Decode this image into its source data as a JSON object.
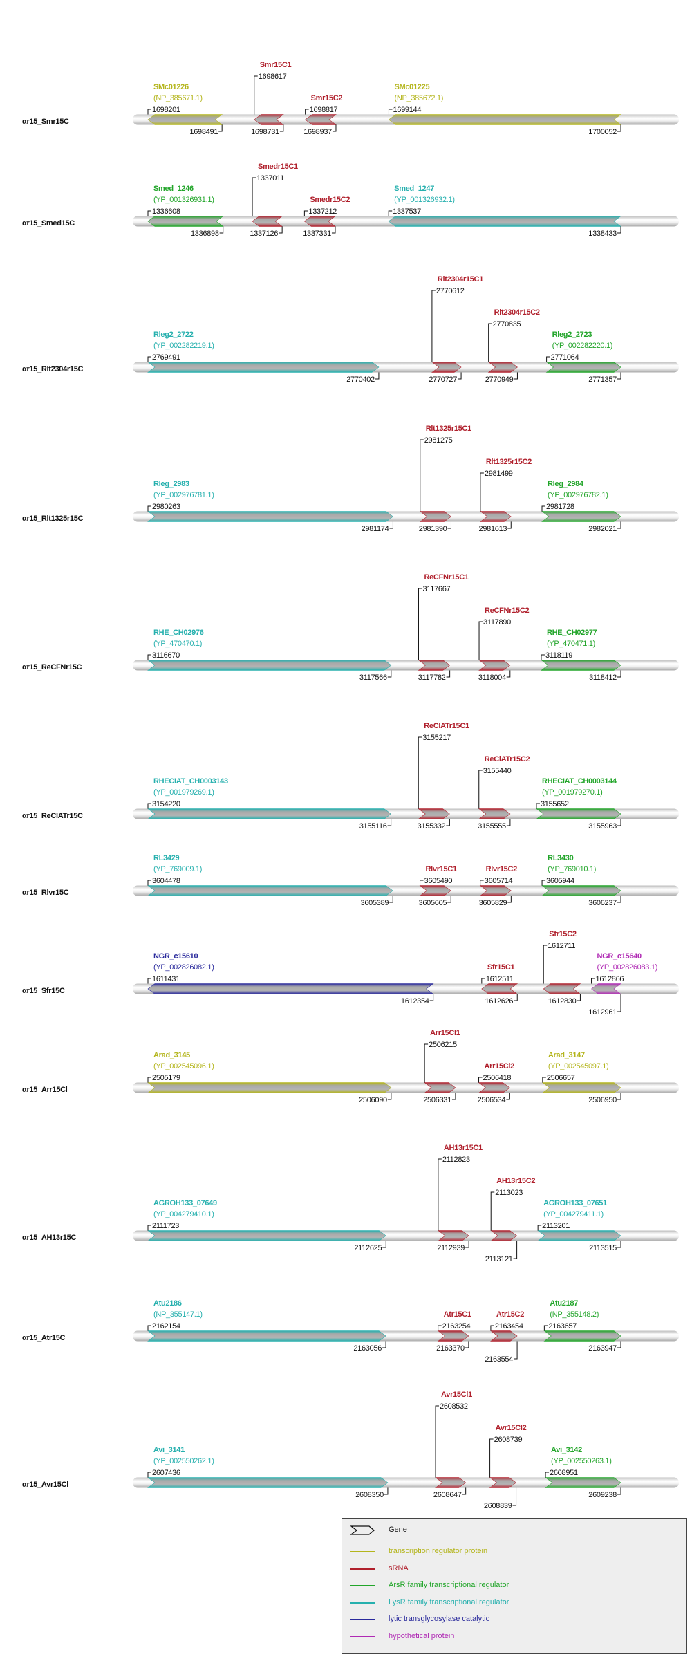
{
  "colors": {
    "transcription_regulator": "#b4b51c",
    "srna": "#b0202c",
    "arsr": "#22a52a",
    "lysr": "#26b0ae",
    "lytic": "#2a2a9c",
    "hypothetical": "#b02ab4",
    "backbone": "#d8d8d8",
    "text": "#111111"
  },
  "tracks": [
    {
      "label": "αr15_Smr15C",
      "features": [
        {
          "name": "SMc01226",
          "accession": "(NP_385671.1)",
          "start": 1698201,
          "end": 1698491,
          "strand": "-",
          "type": "transcription_regulator"
        },
        {
          "name": "Smr15C1",
          "start": 1698617,
          "end": 1698731,
          "strand": "-",
          "type": "srna"
        },
        {
          "name": "Smr15C2",
          "start": 1698817,
          "end": 1698937,
          "strand": "-",
          "type": "srna"
        },
        {
          "name": "SMc01225",
          "accession": "(NP_385672.1)",
          "start": 1699144,
          "end": 1700052,
          "strand": "-",
          "type": "transcription_regulator"
        }
      ]
    },
    {
      "label": "αr15_Smed15C",
      "features": [
        {
          "name": "Smed_1246",
          "accession": "(YP_001326931.1)",
          "start": 1336608,
          "end": 1336898,
          "strand": "-",
          "type": "arsr"
        },
        {
          "name": "Smedr15C1",
          "start": 1337011,
          "end": 1337126,
          "strand": "-",
          "type": "srna"
        },
        {
          "name": "Smedr15C2",
          "start": 1337212,
          "end": 1337331,
          "strand": "-",
          "type": "srna"
        },
        {
          "name": "Smed_1247",
          "accession": "(YP_001326932.1)",
          "start": 1337537,
          "end": 1338433,
          "strand": "-",
          "type": "lysr"
        }
      ]
    },
    {
      "label": "αr15_Rlt2304r15C",
      "features": [
        {
          "name": "Rleg2_2722",
          "accession": "(YP_002282219.1)",
          "start": 2769491,
          "end": 2770402,
          "strand": "+",
          "type": "lysr"
        },
        {
          "name": "Rlt2304r15C1",
          "start": 2770612,
          "end": 2770727,
          "strand": "+",
          "type": "srna"
        },
        {
          "name": "Rlt2304r15C2",
          "start": 2770835,
          "end": 2770949,
          "strand": "+",
          "type": "srna"
        },
        {
          "name": "Rleg2_2723",
          "accession": "(YP_002282220.1)",
          "start": 2771064,
          "end": 2771357,
          "strand": "+",
          "type": "arsr"
        }
      ]
    },
    {
      "label": "αr15_Rlt1325r15C",
      "features": [
        {
          "name": "Rleg_2983",
          "accession": "(YP_002976781.1)",
          "start": 2980263,
          "end": 2981174,
          "strand": "+",
          "type": "lysr"
        },
        {
          "name": "Rlt1325r15C1",
          "start": 2981275,
          "end": 2981390,
          "strand": "+",
          "type": "srna"
        },
        {
          "name": "Rlt1325r15C2",
          "start": 2981499,
          "end": 2981613,
          "strand": "+",
          "type": "srna"
        },
        {
          "name": "Rleg_2984",
          "accession": "(YP_002976782.1)",
          "start": 2981728,
          "end": 2982021,
          "strand": "+",
          "type": "arsr"
        }
      ]
    },
    {
      "label": "αr15_ReCFNr15C",
      "features": [
        {
          "name": "RHE_CH02976",
          "accession": "(YP_470470.1)",
          "start": 3116670,
          "end": 3117566,
          "strand": "+",
          "type": "lysr"
        },
        {
          "name": "ReCFNr15C1",
          "start": 3117667,
          "end": 3117782,
          "strand": "+",
          "type": "srna"
        },
        {
          "name": "ReCFNr15C2",
          "start": 3117890,
          "end": 3118004,
          "strand": "+",
          "type": "srna"
        },
        {
          "name": "RHE_CH02977",
          "accession": "(YP_470471.1)",
          "start": 3118119,
          "end": 3118412,
          "strand": "+",
          "type": "arsr"
        }
      ]
    },
    {
      "label": "αr15_ReClATr15C",
      "features": [
        {
          "name": "RHECIAT_CH0003143",
          "accession": "(YP_001979269.1)",
          "start": 3154220,
          "end": 3155116,
          "strand": "+",
          "type": "lysr"
        },
        {
          "name": "ReClATr15C1",
          "start": 3155217,
          "end": 3155332,
          "strand": "+",
          "type": "srna"
        },
        {
          "name": "ReClATr15C2",
          "start": 3155440,
          "end": 3155555,
          "strand": "+",
          "type": "srna"
        },
        {
          "name": "RHECIAT_CH0003144",
          "accession": "(YP_001979270.1)",
          "start": 3155652,
          "end": 3155963,
          "strand": "+",
          "type": "arsr"
        }
      ]
    },
    {
      "label": "αr15_Rlvr15C",
      "features": [
        {
          "name": "RL3429",
          "accession": "(YP_769009.1)",
          "start": 3604478,
          "end": 3605389,
          "strand": "+",
          "type": "lysr"
        },
        {
          "name": "Rlvr15C1",
          "start": 3605490,
          "end": 3605605,
          "strand": "+",
          "type": "srna"
        },
        {
          "name": "Rlvr15C2",
          "start": 3605714,
          "end": 3605829,
          "strand": "+",
          "type": "srna"
        },
        {
          "name": "RL3430",
          "accession": "(YP_769010.1)",
          "start": 3605944,
          "end": 3606237,
          "strand": "+",
          "type": "arsr"
        }
      ]
    },
    {
      "label": "αr15_Sfr15C",
      "features": [
        {
          "name": "NGR_c15610",
          "accession": "(YP_002826082.1)",
          "start": 1611431,
          "end": 1612354,
          "strand": "-",
          "type": "lytic"
        },
        {
          "name": "Sfr15C1",
          "start": 1612511,
          "end": 1612626,
          "strand": "-",
          "type": "srna"
        },
        {
          "name": "Sfr15C2",
          "start": 1612711,
          "end": 1612830,
          "strand": "-",
          "type": "srna"
        },
        {
          "name": "NGR_c15640",
          "accession": "(YP_002826083.1)",
          "start": 1612866,
          "end": 1612961,
          "strand": "-",
          "type": "hypothetical"
        }
      ]
    },
    {
      "label": "αr15_Arr15Cl",
      "features": [
        {
          "name": "Arad_3145",
          "accession": "(YP_002545096.1)",
          "start": 2505179,
          "end": 2506090,
          "strand": "+",
          "type": "transcription_regulator"
        },
        {
          "name": "Arr15Cl1",
          "start": 2506215,
          "end": 2506331,
          "strand": "+",
          "type": "srna"
        },
        {
          "name": "Arr15Cl2",
          "start": 2506418,
          "end": 2506534,
          "strand": "+",
          "type": "srna"
        },
        {
          "name": "Arad_3147",
          "accession": "(YP_002545097.1)",
          "start": 2506657,
          "end": 2506950,
          "strand": "+",
          "type": "transcription_regulator"
        }
      ]
    },
    {
      "label": "αr15_AH13r15C",
      "features": [
        {
          "name": "AGROH133_07649",
          "accession": "(YP_004279410.1)",
          "start": 2111723,
          "end": 2112625,
          "strand": "+",
          "type": "lysr"
        },
        {
          "name": "AH13r15C1",
          "start": 2112823,
          "end": 2112939,
          "strand": "+",
          "type": "srna"
        },
        {
          "name": "AH13r15C2",
          "start": 2113023,
          "end": 2113121,
          "strand": "+",
          "type": "srna"
        },
        {
          "name": "AGROH133_07651",
          "accession": "(YP_004279411.1)",
          "start": 2113201,
          "end": 2113515,
          "strand": "+",
          "type": "lysr"
        }
      ]
    },
    {
      "label": "αr15_Atr15C",
      "features": [
        {
          "name": "Atu2186",
          "accession": "(NP_355147.1)",
          "start": 2162154,
          "end": 2163056,
          "strand": "+",
          "type": "lysr"
        },
        {
          "name": "Atr15C1",
          "start": 2163254,
          "end": 2163370,
          "strand": "+",
          "type": "srna"
        },
        {
          "name": "Atr15C2",
          "start": 2163454,
          "end": 2163554,
          "strand": "+",
          "type": "srna"
        },
        {
          "name": "Atu2187",
          "accession": "(NP_355148.2)",
          "start": 2163657,
          "end": 2163947,
          "strand": "+",
          "type": "arsr"
        }
      ]
    },
    {
      "label": "αr15_Avr15Cl",
      "features": [
        {
          "name": "Avi_3141",
          "accession": "(YP_002550262.1)",
          "start": 2607436,
          "end": 2608350,
          "strand": "+",
          "type": "lysr"
        },
        {
          "name": "Avr15Cl1",
          "start": 2608532,
          "end": 2608647,
          "strand": "+",
          "type": "srna"
        },
        {
          "name": "Avr15Cl2",
          "start": 2608739,
          "end": 2608839,
          "strand": "+",
          "type": "srna"
        },
        {
          "name": "Avi_3142",
          "accession": "(YP_002550263.1)",
          "start": 2608951,
          "end": 2609238,
          "strand": "+",
          "type": "arsr"
        }
      ]
    }
  ],
  "legend": {
    "gene_label": "Gene",
    "items": [
      {
        "label": "transcription regulator protein",
        "type": "transcription_regulator"
      },
      {
        "label": "sRNA",
        "type": "srna"
      },
      {
        "label": "ArsR family transcriptional regulator",
        "type": "arsr"
      },
      {
        "label": "LysR family transcriptional regulator",
        "type": "lysr"
      },
      {
        "label": "lytic transglycosylase catalytic",
        "type": "lytic"
      },
      {
        "label": "hypothetical protein",
        "type": "hypothetical"
      }
    ]
  }
}
